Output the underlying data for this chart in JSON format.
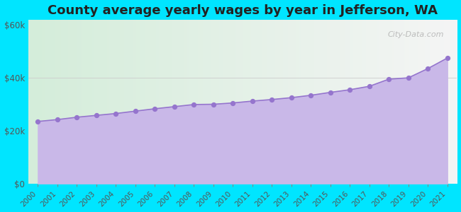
{
  "title": "County average yearly wages by year in Jefferson, WA",
  "years": [
    2000,
    2001,
    2002,
    2003,
    2004,
    2005,
    2006,
    2007,
    2008,
    2009,
    2010,
    2011,
    2012,
    2013,
    2014,
    2015,
    2016,
    2017,
    2018,
    2019,
    2020,
    2021
  ],
  "wages": [
    23500,
    24200,
    25100,
    25800,
    26500,
    27400,
    28300,
    29100,
    29900,
    30000,
    30500,
    31200,
    31800,
    32500,
    33400,
    34500,
    35500,
    36800,
    39500,
    40000,
    43500,
    47500
  ],
  "marker_color": "#9575cd",
  "fill_color": "#c9b8e8",
  "background_outer": "#00e5ff",
  "background_top_left": "#d4edda",
  "background_top_right": "#f5f5f5",
  "ylim": [
    0,
    62000
  ],
  "yticks": [
    0,
    20000,
    40000,
    60000
  ],
  "ytick_labels": [
    "$0",
    "$20k",
    "$40k",
    "$60k"
  ],
  "title_fontsize": 13,
  "watermark": "City-Data.com"
}
